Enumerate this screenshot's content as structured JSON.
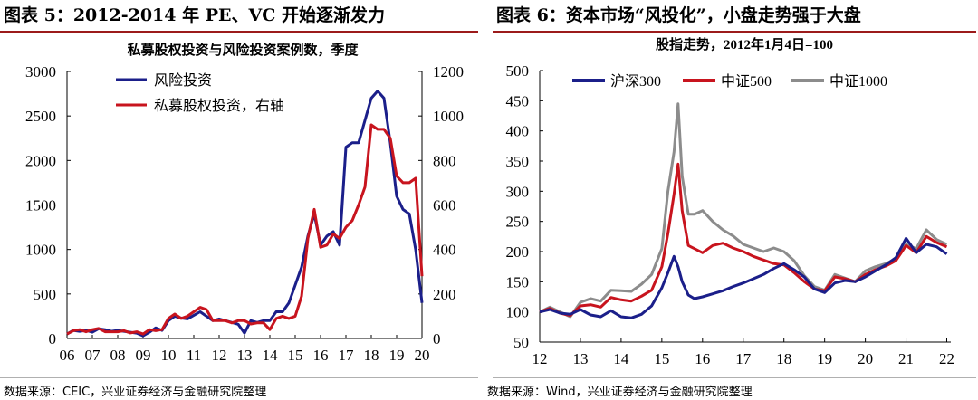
{
  "left": {
    "header": "图表 5：2012-2014 年 PE、VC 开始逐渐发力",
    "source": "数据来源：CEIC，兴业证券经济与金融研究院整理",
    "chart_data": {
      "type": "line",
      "title": "私募股权投资与风险投资案例数，季度",
      "categories": [
        "06",
        "07",
        "08",
        "09",
        "10",
        "11",
        "12",
        "13",
        "14",
        "15",
        "16",
        "17",
        "18",
        "19",
        "20"
      ],
      "y_left_ticks": [
        "0",
        "500",
        "1000",
        "1500",
        "2000",
        "2500",
        "3000"
      ],
      "y_right_ticks": [
        "0",
        "200",
        "400",
        "600",
        "800",
        "1000",
        "1200"
      ],
      "ylim_left": [
        0,
        3000
      ],
      "ylim_right": [
        0,
        1200
      ],
      "series": [
        {
          "name": "风险投资",
          "axis": "left",
          "color": "#1b1f8a",
          "x": [
            6.0,
            6.25,
            6.5,
            6.75,
            7.0,
            7.25,
            7.5,
            7.75,
            8.0,
            8.25,
            8.5,
            8.75,
            9.0,
            9.25,
            9.5,
            9.75,
            10.0,
            10.25,
            10.5,
            10.75,
            11.0,
            11.25,
            11.5,
            11.75,
            12.0,
            12.25,
            12.5,
            12.75,
            13.0,
            13.25,
            13.5,
            13.75,
            14.0,
            14.25,
            14.5,
            14.75,
            15.0,
            15.25,
            15.5,
            15.75,
            16.0,
            16.25,
            16.5,
            16.75,
            17.0,
            17.25,
            17.5,
            17.75,
            18.0,
            18.25,
            18.5,
            18.75,
            19.0,
            19.25,
            19.5,
            19.75,
            20.0
          ],
          "y": [
            50,
            90,
            80,
            90,
            70,
            110,
            100,
            80,
            90,
            80,
            70,
            60,
            30,
            70,
            120,
            90,
            200,
            250,
            230,
            220,
            260,
            300,
            250,
            200,
            220,
            200,
            180,
            160,
            60,
            200,
            180,
            200,
            200,
            300,
            300,
            400,
            600,
            800,
            1150,
            1400,
            1050,
            1150,
            1200,
            1050,
            2150,
            2200,
            2200,
            2450,
            2700,
            2780,
            2700,
            2200,
            1600,
            1450,
            1400,
            1000,
            400
          ],
          "labelled": true
        },
        {
          "name": "私募股权投资，右轴",
          "axis": "right",
          "color": "#c8141e",
          "x": [
            6.0,
            6.25,
            6.5,
            6.75,
            7.0,
            7.25,
            7.5,
            7.75,
            8.0,
            8.25,
            8.5,
            8.75,
            9.0,
            9.25,
            9.5,
            9.75,
            10.0,
            10.25,
            10.5,
            10.75,
            11.0,
            11.25,
            11.5,
            11.75,
            12.0,
            12.25,
            12.5,
            12.75,
            13.0,
            13.25,
            13.5,
            13.75,
            14.0,
            14.25,
            14.5,
            14.75,
            15.0,
            15.25,
            15.5,
            15.75,
            16.0,
            16.25,
            16.5,
            16.75,
            17.0,
            17.25,
            17.5,
            17.75,
            18.0,
            18.25,
            18.5,
            18.75,
            19.0,
            19.25,
            19.5,
            19.75,
            20.0
          ],
          "y": [
            20,
            35,
            40,
            30,
            40,
            45,
            30,
            30,
            30,
            35,
            25,
            30,
            20,
            40,
            35,
            40,
            90,
            110,
            90,
            100,
            120,
            140,
            130,
            80,
            80,
            80,
            70,
            80,
            80,
            65,
            70,
            70,
            40,
            90,
            100,
            90,
            100,
            190,
            450,
            580,
            410,
            420,
            470,
            450,
            500,
            530,
            600,
            680,
            960,
            940,
            940,
            900,
            730,
            700,
            700,
            720,
            280
          ],
          "labelled": true
        }
      ]
    }
  },
  "right": {
    "header": "图表 6：资本市场“风投化”，小盘走势强于大盘",
    "source": "数据来源：Wind，兴业证券经济与金融研究院整理",
    "chart_data": {
      "type": "line",
      "title": "股指走势，2012年1月4日=100",
      "categories": [
        "12",
        "13",
        "14",
        "15",
        "16",
        "17",
        "18",
        "19",
        "20",
        "21",
        "22"
      ],
      "y_ticks": [
        "50",
        "100",
        "150",
        "200",
        "250",
        "300",
        "350",
        "400",
        "450",
        "500"
      ],
      "ylim": [
        50,
        500
      ],
      "series": [
        {
          "name": "沪深300",
          "color": "#1b1f8a",
          "x": [
            12.0,
            12.25,
            12.5,
            12.75,
            13.0,
            13.25,
            13.5,
            13.75,
            14.0,
            14.25,
            14.5,
            14.75,
            15.0,
            15.15,
            15.3,
            15.4,
            15.5,
            15.65,
            15.8,
            16.0,
            16.25,
            16.5,
            16.75,
            17.0,
            17.25,
            17.5,
            17.75,
            18.0,
            18.25,
            18.5,
            18.75,
            19.0,
            19.25,
            19.5,
            19.75,
            20.0,
            20.25,
            20.5,
            20.75,
            21.0,
            21.25,
            21.5,
            21.75,
            22.0
          ],
          "y": [
            100,
            104,
            98,
            96,
            104,
            95,
            92,
            102,
            92,
            90,
            96,
            110,
            140,
            165,
            192,
            175,
            150,
            128,
            122,
            125,
            130,
            135,
            142,
            148,
            155,
            162,
            172,
            180,
            170,
            158,
            138,
            132,
            148,
            152,
            150,
            158,
            168,
            178,
            190,
            222,
            198,
            212,
            208,
            196
          ],
          "labelled": true
        },
        {
          "name": "中证500",
          "color": "#c8141e",
          "x": [
            12.0,
            12.25,
            12.5,
            12.75,
            13.0,
            13.25,
            13.5,
            13.75,
            14.0,
            14.25,
            14.5,
            14.75,
            15.0,
            15.15,
            15.3,
            15.4,
            15.5,
            15.65,
            15.8,
            16.0,
            16.25,
            16.5,
            16.75,
            17.0,
            17.25,
            17.5,
            17.75,
            18.0,
            18.25,
            18.5,
            18.75,
            19.0,
            19.25,
            19.5,
            19.75,
            20.0,
            20.25,
            20.5,
            20.75,
            21.0,
            21.25,
            21.5,
            21.75,
            22.0
          ],
          "y": [
            100,
            106,
            98,
            94,
            110,
            112,
            108,
            124,
            120,
            118,
            126,
            136,
            175,
            230,
            295,
            345,
            268,
            210,
            205,
            198,
            210,
            214,
            206,
            200,
            192,
            186,
            180,
            178,
            165,
            150,
            138,
            135,
            158,
            155,
            150,
            162,
            170,
            176,
            185,
            210,
            198,
            225,
            215,
            208
          ],
          "labelled": true
        },
        {
          "name": "中证1000",
          "color": "#8c8c8c",
          "x": [
            12.0,
            12.25,
            12.5,
            12.75,
            13.0,
            13.25,
            13.5,
            13.75,
            14.0,
            14.25,
            14.5,
            14.75,
            15.0,
            15.15,
            15.3,
            15.4,
            15.5,
            15.65,
            15.8,
            16.0,
            16.25,
            16.5,
            16.75,
            17.0,
            17.25,
            17.5,
            17.75,
            18.0,
            18.25,
            18.5,
            18.75,
            19.0,
            19.25,
            19.5,
            19.75,
            20.0,
            20.25,
            20.5,
            20.75,
            21.0,
            21.25,
            21.5,
            21.75,
            22.0
          ],
          "y": [
            100,
            108,
            100,
            92,
            116,
            122,
            118,
            136,
            135,
            134,
            146,
            162,
            205,
            300,
            365,
            445,
            325,
            262,
            262,
            268,
            250,
            236,
            226,
            212,
            206,
            200,
            206,
            200,
            185,
            160,
            142,
            136,
            162,
            156,
            150,
            168,
            175,
            180,
            188,
            212,
            205,
            236,
            220,
            212
          ],
          "labelled": true
        }
      ]
    }
  }
}
